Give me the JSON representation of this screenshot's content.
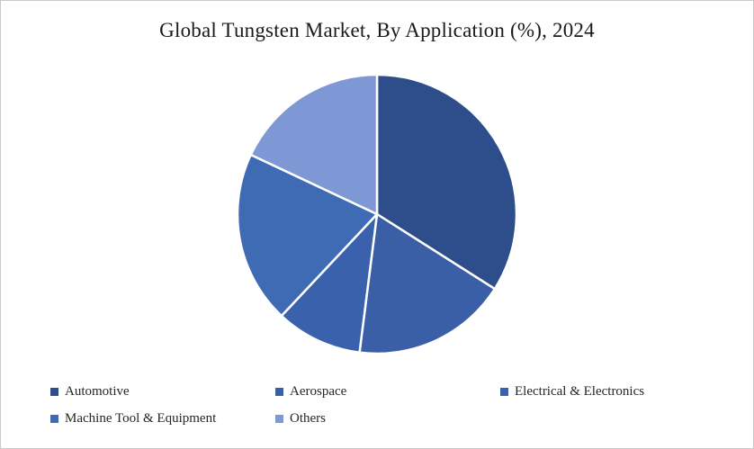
{
  "chart_data": {
    "type": "pie",
    "title": "Global Tungsten Market, By Application (%), 2024",
    "start_angle_deg": 0,
    "direction": "clockwise",
    "legend_position": "bottom",
    "slice_border_color": "#ffffff",
    "slices": [
      {
        "label": "Automotive",
        "value": 34,
        "color": "#2E4D8B"
      },
      {
        "label": "Aerospace",
        "value": 18,
        "color": "#3A5FA6"
      },
      {
        "label": "Electrical & Electronics",
        "value": 10,
        "color": "#3A62AC"
      },
      {
        "label": "Machine Tool & Equipment",
        "value": 20,
        "color": "#3F6BB5"
      },
      {
        "label": "Others",
        "value": 18,
        "color": "#7E97D5"
      }
    ]
  }
}
